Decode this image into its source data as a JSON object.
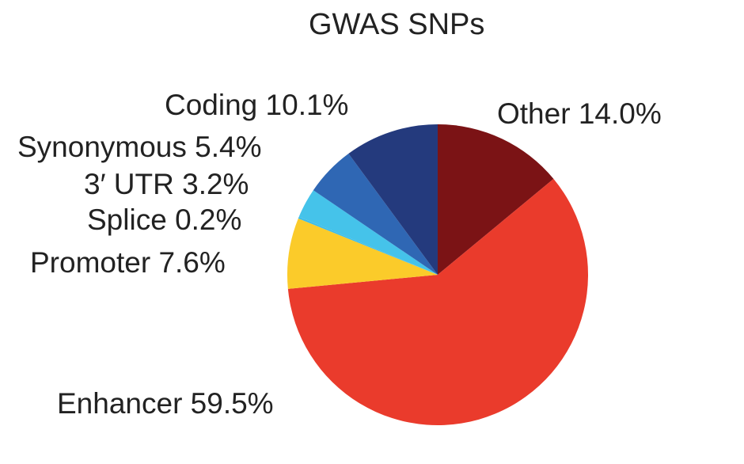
{
  "chart_data": {
    "type": "pie",
    "title": "GWAS SNPs",
    "slices": [
      {
        "label": "Other",
        "value": 14.0,
        "display": "14.0%",
        "color": "#7b1315"
      },
      {
        "label": "Enhancer",
        "value": 59.5,
        "display": "59.5%",
        "color": "#ea3b2c"
      },
      {
        "label": "Promoter",
        "value": 7.6,
        "display": "7.6%",
        "color": "#fbcb2a"
      },
      {
        "label": "Splice",
        "value": 0.2,
        "display": "0.2%",
        "color": "#3fbce7"
      },
      {
        "label": "3′ UTR",
        "value": 3.2,
        "display": "3.2%",
        "color": "#45c3ea"
      },
      {
        "label": "Synonymous",
        "value": 5.4,
        "display": "5.4%",
        "color": "#2f67b4"
      },
      {
        "label": "Coding",
        "value": 10.1,
        "display": "10.1%",
        "color": "#243a7d"
      }
    ]
  }
}
